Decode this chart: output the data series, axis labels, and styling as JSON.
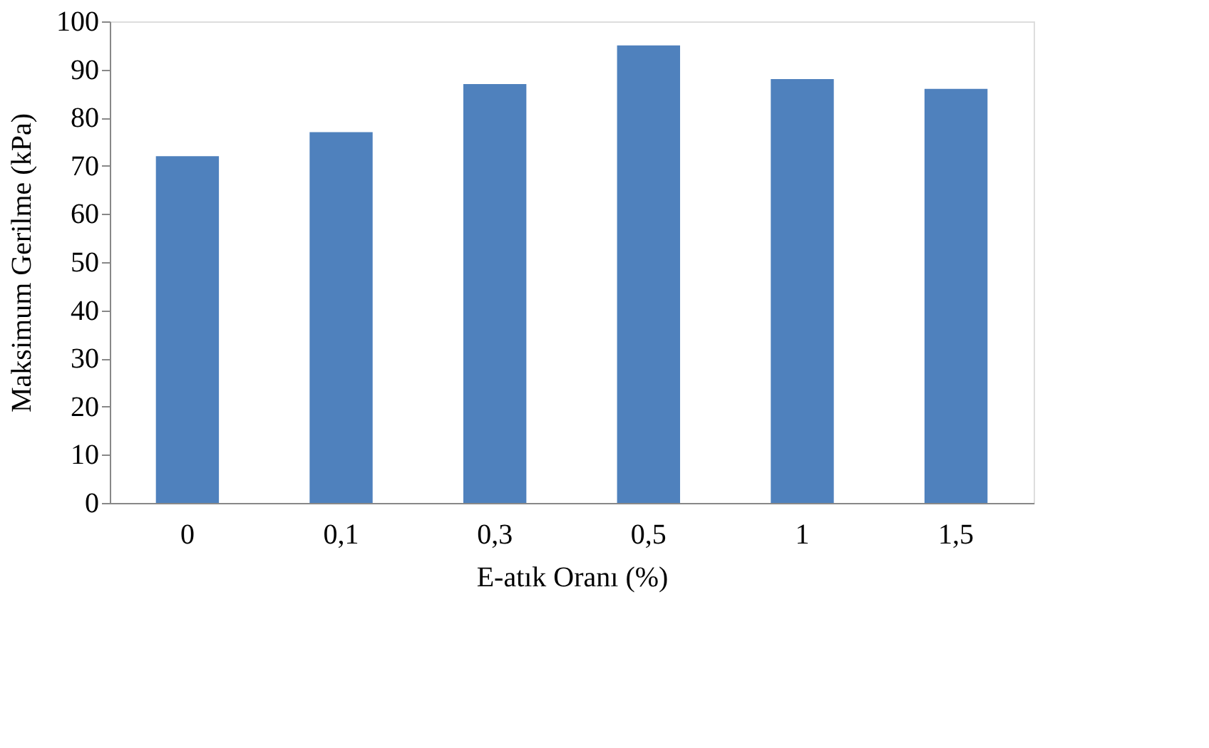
{
  "chart_data": {
    "type": "bar",
    "xlabel": "E-atık Oranı (%)",
    "ylabel": "Maksimum Gerilme (kPa)",
    "categories": [
      "0",
      "0,1",
      "0,3",
      "0,5",
      "1",
      "1,5"
    ],
    "values": [
      72,
      77,
      87,
      95,
      88,
      86
    ],
    "color": "#4f81bd",
    "ylim": [
      0,
      100
    ],
    "yticks": [
      0,
      10,
      20,
      30,
      40,
      50,
      60,
      70,
      80,
      90,
      100
    ],
    "grid": false
  }
}
